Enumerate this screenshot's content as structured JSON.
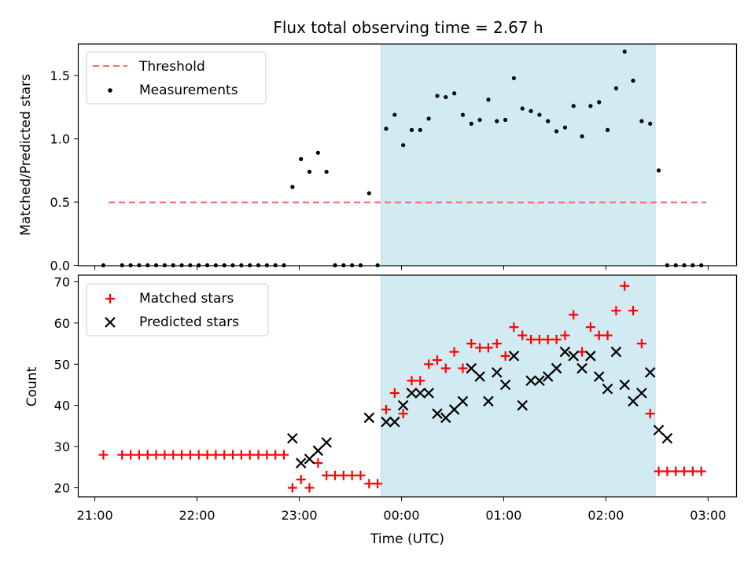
{
  "figure": {
    "title": "Flux total observing time = 2.67 h"
  },
  "chart_data": [
    {
      "type": "scatter",
      "panel": "top",
      "title": "Flux total observing time = 2.67 h",
      "xlabel": "",
      "ylabel": "Matched/Predicted stars",
      "xlim": [
        "20:55",
        "03:16"
      ],
      "ylim": [
        0,
        1.75
      ],
      "yticks": [
        0.0,
        0.5,
        1.0,
        1.5
      ],
      "ytick_labels": [
        "0.0",
        "0.5",
        "1.0",
        "1.5"
      ],
      "grid": false,
      "legend": "upper-left",
      "shaded_region": {
        "x_start": "23:49",
        "x_end": "02:30",
        "color": "#add8e6"
      },
      "series": [
        {
          "name": "Threshold",
          "style": "dashed-line",
          "color": "#ff6b6b",
          "x": [
            "21:05",
            "02:58"
          ],
          "y": [
            0.5,
            0.5
          ]
        },
        {
          "name": "Measurements",
          "style": "dot",
          "color": "#000000",
          "x": [
            "21:05",
            "21:16",
            "21:21",
            "21:26",
            "21:31",
            "21:36",
            "21:41",
            "21:46",
            "21:51",
            "21:56",
            "22:01",
            "22:06",
            "22:11",
            "22:16",
            "22:21",
            "22:26",
            "22:31",
            "22:36",
            "22:41",
            "22:46",
            "22:51",
            "22:56",
            "23:01",
            "23:06",
            "23:11",
            "23:16",
            "23:21",
            "23:26",
            "23:31",
            "23:36",
            "23:41",
            "23:46",
            "23:51",
            "23:56",
            "24:01",
            "24:06",
            "24:11",
            "24:16",
            "24:21",
            "24:26",
            "24:31",
            "24:36",
            "24:41",
            "24:46",
            "24:51",
            "24:56",
            "25:01",
            "25:06",
            "25:11",
            "25:16",
            "25:21",
            "25:26",
            "25:31",
            "25:36",
            "25:41",
            "25:46",
            "25:51",
            "25:56",
            "26:01",
            "26:06",
            "26:11",
            "26:16",
            "26:21",
            "26:26",
            "26:31",
            "26:36",
            "26:41",
            "26:46",
            "26:51",
            "26:56"
          ],
          "y": [
            0,
            0,
            0,
            0,
            0,
            0,
            0,
            0,
            0,
            0,
            0,
            0,
            0,
            0,
            0,
            0,
            0,
            0,
            0,
            0,
            0,
            0.62,
            0.84,
            0.74,
            0.89,
            0.74,
            0,
            0,
            0,
            0,
            0.57,
            0,
            1.08,
            1.19,
            0.95,
            1.07,
            1.07,
            1.16,
            1.34,
            1.33,
            1.36,
            1.19,
            1.12,
            1.15,
            1.31,
            1.14,
            1.15,
            1.48,
            1.24,
            1.22,
            1.19,
            1.14,
            1.06,
            1.09,
            1.26,
            1.02,
            1.26,
            1.29,
            1.07,
            1.4,
            1.69,
            1.46,
            1.14,
            1.12,
            0.75,
            0,
            0,
            0,
            0,
            0
          ]
        }
      ]
    },
    {
      "type": "scatter",
      "panel": "bottom",
      "xlabel": "Time (UTC)",
      "ylabel": "Count",
      "xlim": [
        "20:55",
        "03:16"
      ],
      "ylim": [
        18,
        71.5
      ],
      "xticks": [
        "21:00",
        "22:00",
        "23:00",
        "00:00",
        "01:00",
        "02:00",
        "03:00"
      ],
      "yticks": [
        20,
        30,
        40,
        50,
        60,
        70
      ],
      "ytick_labels": [
        "20",
        "30",
        "40",
        "50",
        "60",
        "70"
      ],
      "grid": false,
      "legend": "upper-left",
      "shaded_region": {
        "x_start": "23:49",
        "x_end": "02:30",
        "color": "#add8e6"
      },
      "series": [
        {
          "name": "Matched stars",
          "marker": "plus",
          "color": "#ff0000",
          "x": [
            "21:05",
            "21:16",
            "21:21",
            "21:26",
            "21:31",
            "21:36",
            "21:41",
            "21:46",
            "21:51",
            "21:56",
            "22:01",
            "22:06",
            "22:11",
            "22:16",
            "22:21",
            "22:26",
            "22:31",
            "22:36",
            "22:41",
            "22:46",
            "22:51",
            "22:56",
            "23:01",
            "23:06",
            "23:11",
            "23:16",
            "23:21",
            "23:26",
            "23:31",
            "23:36",
            "23:41",
            "23:46",
            "23:51",
            "23:56",
            "24:01",
            "24:06",
            "24:11",
            "24:16",
            "24:21",
            "24:26",
            "24:31",
            "24:36",
            "24:41",
            "24:46",
            "24:51",
            "24:56",
            "25:01",
            "25:06",
            "25:11",
            "25:16",
            "25:21",
            "25:26",
            "25:31",
            "25:36",
            "25:41",
            "25:46",
            "25:51",
            "25:56",
            "26:01",
            "26:06",
            "26:11",
            "26:16",
            "26:21",
            "26:26",
            "26:31",
            "26:36",
            "26:41",
            "26:46",
            "26:51",
            "26:56"
          ],
          "y": [
            28,
            28,
            28,
            28,
            28,
            28,
            28,
            28,
            28,
            28,
            28,
            28,
            28,
            28,
            28,
            28,
            28,
            28,
            28,
            28,
            28,
            20,
            22,
            20,
            26,
            23,
            23,
            23,
            23,
            23,
            21,
            21,
            39,
            43,
            38,
            46,
            46,
            50,
            51,
            49,
            53,
            49,
            55,
            54,
            54,
            55,
            52,
            59,
            57,
            56,
            56,
            56,
            56,
            57,
            62,
            53,
            59,
            57,
            57,
            63,
            69,
            63,
            55,
            38,
            24,
            24,
            24,
            24,
            24,
            24
          ]
        },
        {
          "name": "Predicted stars",
          "marker": "x",
          "color": "#000000",
          "x": [
            "22:56",
            "23:01",
            "23:06",
            "23:11",
            "23:16",
            "23:41",
            "23:51",
            "23:56",
            "24:01",
            "24:06",
            "24:11",
            "24:16",
            "24:21",
            "24:26",
            "24:31",
            "24:36",
            "24:41",
            "24:46",
            "24:51",
            "24:56",
            "25:01",
            "25:06",
            "25:11",
            "25:16",
            "25:21",
            "25:26",
            "25:31",
            "25:36",
            "25:41",
            "25:46",
            "25:51",
            "25:56",
            "26:01",
            "26:06",
            "26:11",
            "26:16",
            "26:21",
            "26:26"
          ],
          "y": [
            32,
            26,
            27,
            29,
            31,
            37,
            36,
            36,
            40,
            43,
            43,
            43,
            38,
            37,
            39,
            41,
            49,
            47,
            41,
            48,
            45,
            52,
            40,
            46,
            46,
            47,
            49,
            53,
            52,
            49,
            52,
            47,
            44,
            53,
            45,
            41,
            43,
            48
          ]
        }
      ]
    },
    {
      "type": "scatter",
      "panel": "bottom-tail",
      "note_series": "Predicted stars",
      "x": [
        "26:31",
        "26:36"
      ],
      "y": [
        34,
        32
      ]
    }
  ]
}
